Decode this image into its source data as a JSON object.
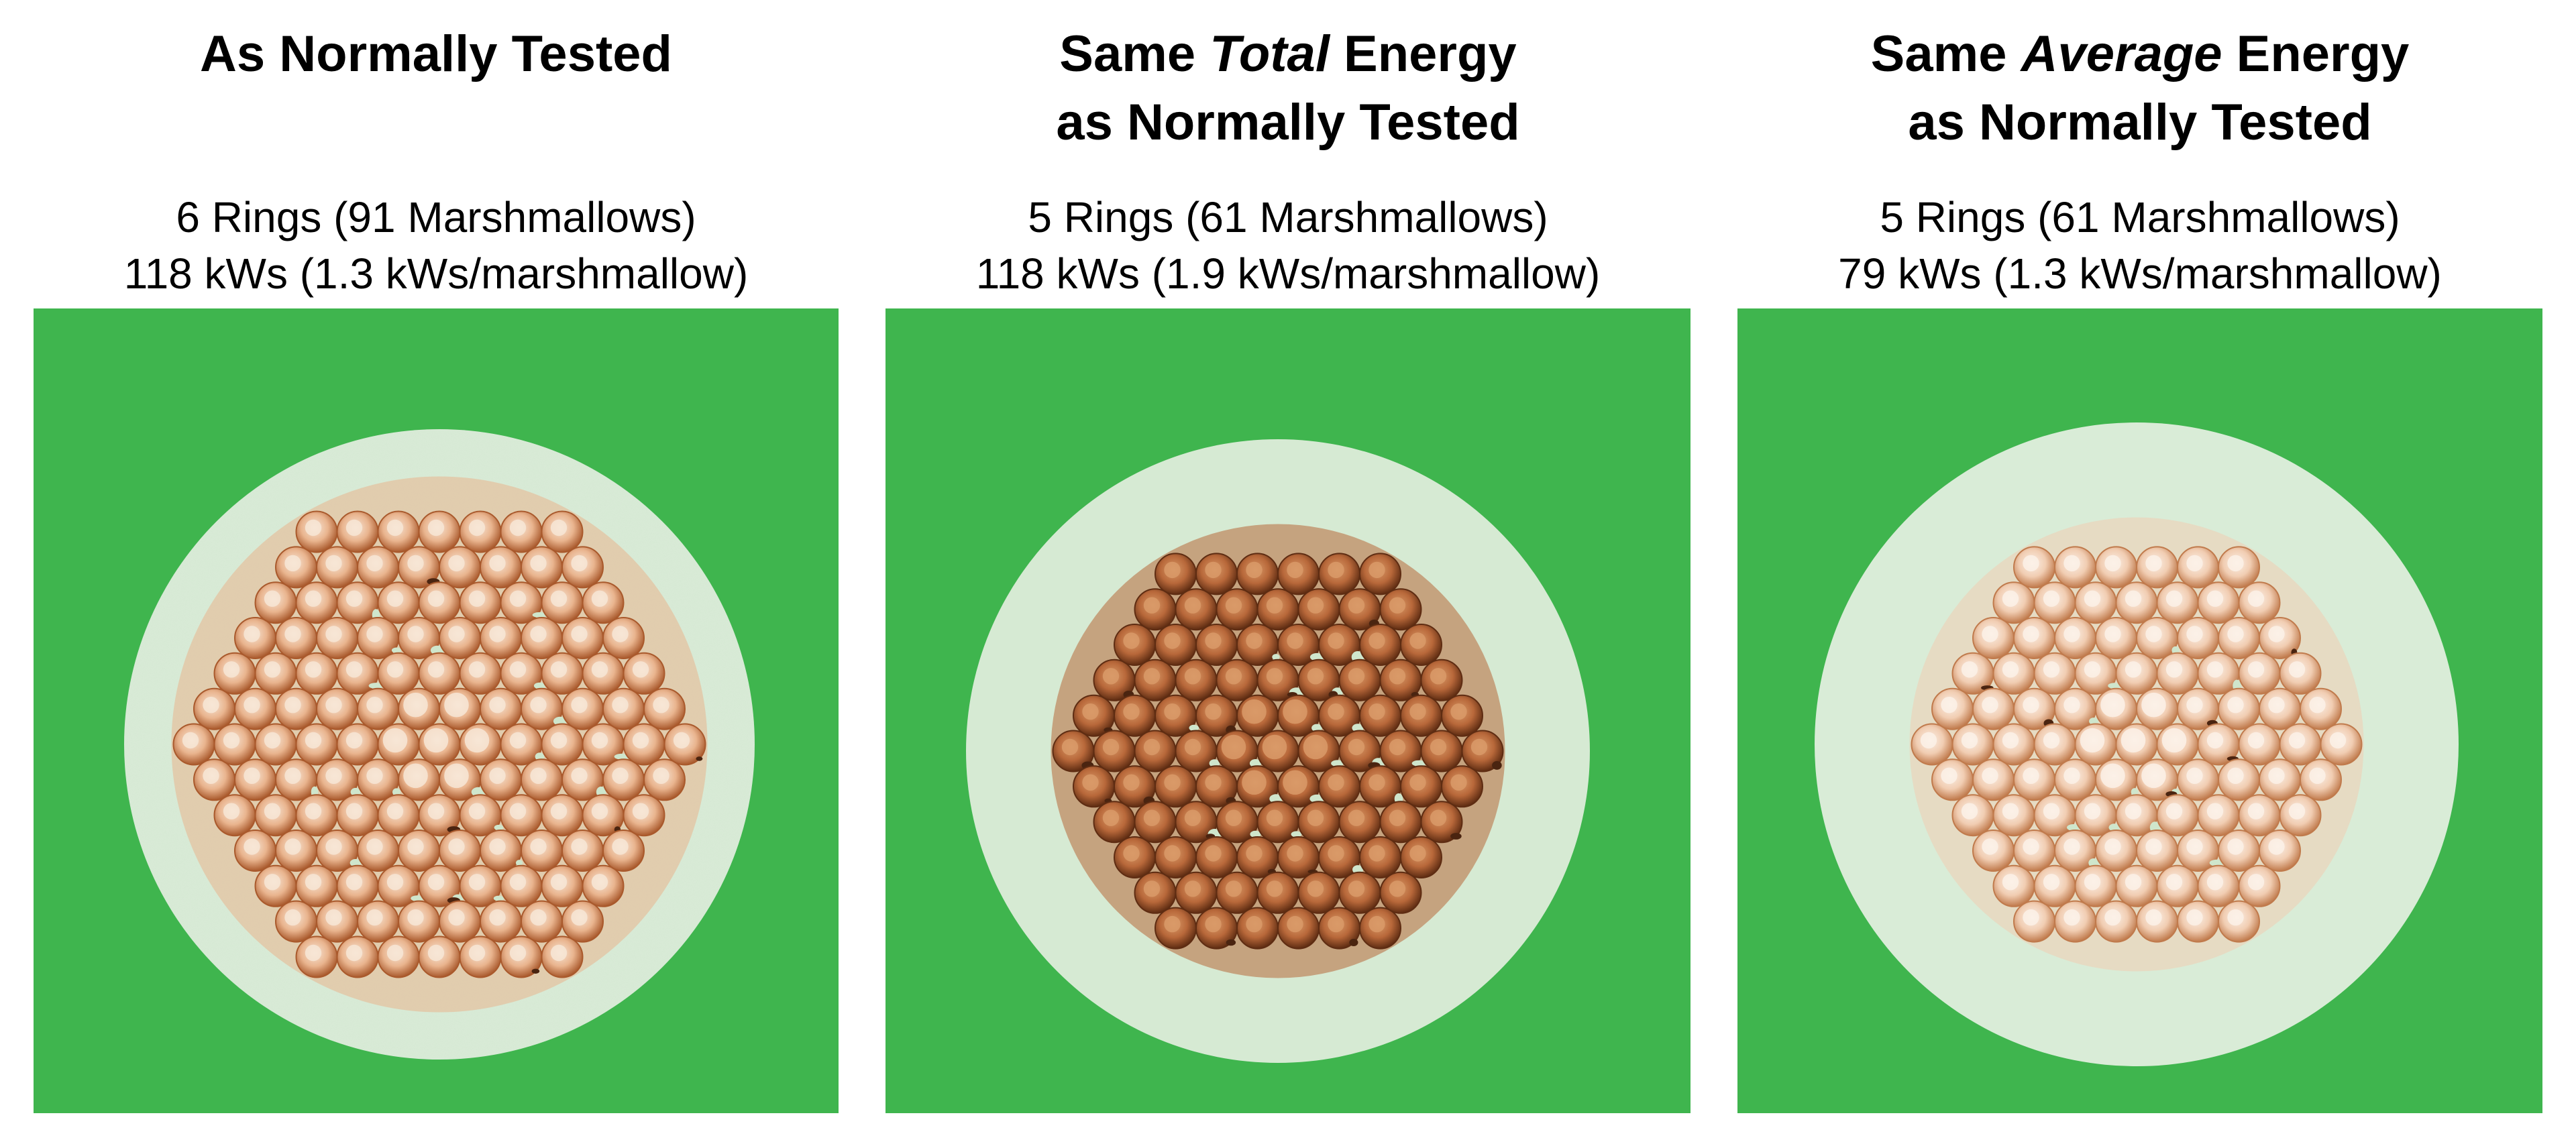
{
  "panels": [
    {
      "title": "As Normally Tested",
      "rings": "6 Rings (91 Marshmallows)",
      "energy": "118 kWs (1.3 kWs/marshmallow)",
      "image_label": "Scorched marshmallow ring array, normal test",
      "ring_count": 6,
      "marshmallow_count": 91,
      "char_level": "moderate"
    },
    {
      "title_prefix": "Same ",
      "title_emph": "Total",
      "title_suffix": " Energy",
      "title_line2": "as Normally Tested",
      "rings": "5 Rings (61 Marshmallows)",
      "energy": "118 kWs (1.9 kWs/marshmallow)",
      "image_label": "Heavily scorched marshmallow ring array, same total energy",
      "ring_count": 5,
      "marshmallow_count": 61,
      "char_level": "heavy"
    },
    {
      "title_prefix": "Same ",
      "title_emph": "Average",
      "title_suffix": " Energy",
      "title_line2": "as Normally Tested",
      "rings": "5 Rings (61 Marshmallows)",
      "energy": "79 kWs (1.3 kWs/marshmallow)",
      "image_label": "Lightly scorched marshmallow ring array, same average energy",
      "ring_count": 5,
      "marshmallow_count": 61,
      "char_level": "light"
    }
  ],
  "colors": {
    "background_green": "#3fb54e",
    "paper": "#d8ebd6",
    "marshmallow_light": "#f6e2d0",
    "marshmallow_scorch": "#b8683a",
    "char": "#4a2410"
  }
}
